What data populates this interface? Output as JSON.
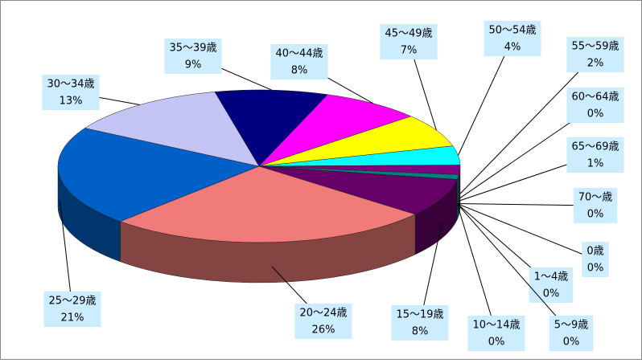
{
  "chart_data": {
    "type": "pie",
    "categories": [
      "0歳",
      "1～4歳",
      "5～9歳",
      "10～14歳",
      "15～19歳",
      "20～24歳",
      "25～29歳",
      "30～34歳",
      "35～39歳",
      "40～44歳",
      "45～49歳",
      "50～54歳",
      "55～59歳",
      "60～64歳",
      "65～69歳",
      "70～歳"
    ],
    "values": [
      0,
      0,
      0,
      0,
      8,
      26,
      21,
      13,
      9,
      8,
      7,
      4,
      2,
      0,
      1,
      0
    ],
    "value_labels": [
      "0%",
      "0%",
      "0%",
      "0%",
      "8%",
      "26%",
      "21%",
      "13%",
      "9%",
      "8%",
      "7%",
      "4%",
      "2%",
      "0%",
      "1%",
      "0%"
    ],
    "colors": [
      "#ff9900",
      "#99cc00",
      "#ff6600",
      "#cc9900",
      "#660066",
      "#f07b78",
      "#0060c8",
      "#c4c4f4",
      "#000080",
      "#ff00ff",
      "#ffff00",
      "#00ffff",
      "#800080",
      "#993366",
      "#008080",
      "#333399"
    ]
  }
}
